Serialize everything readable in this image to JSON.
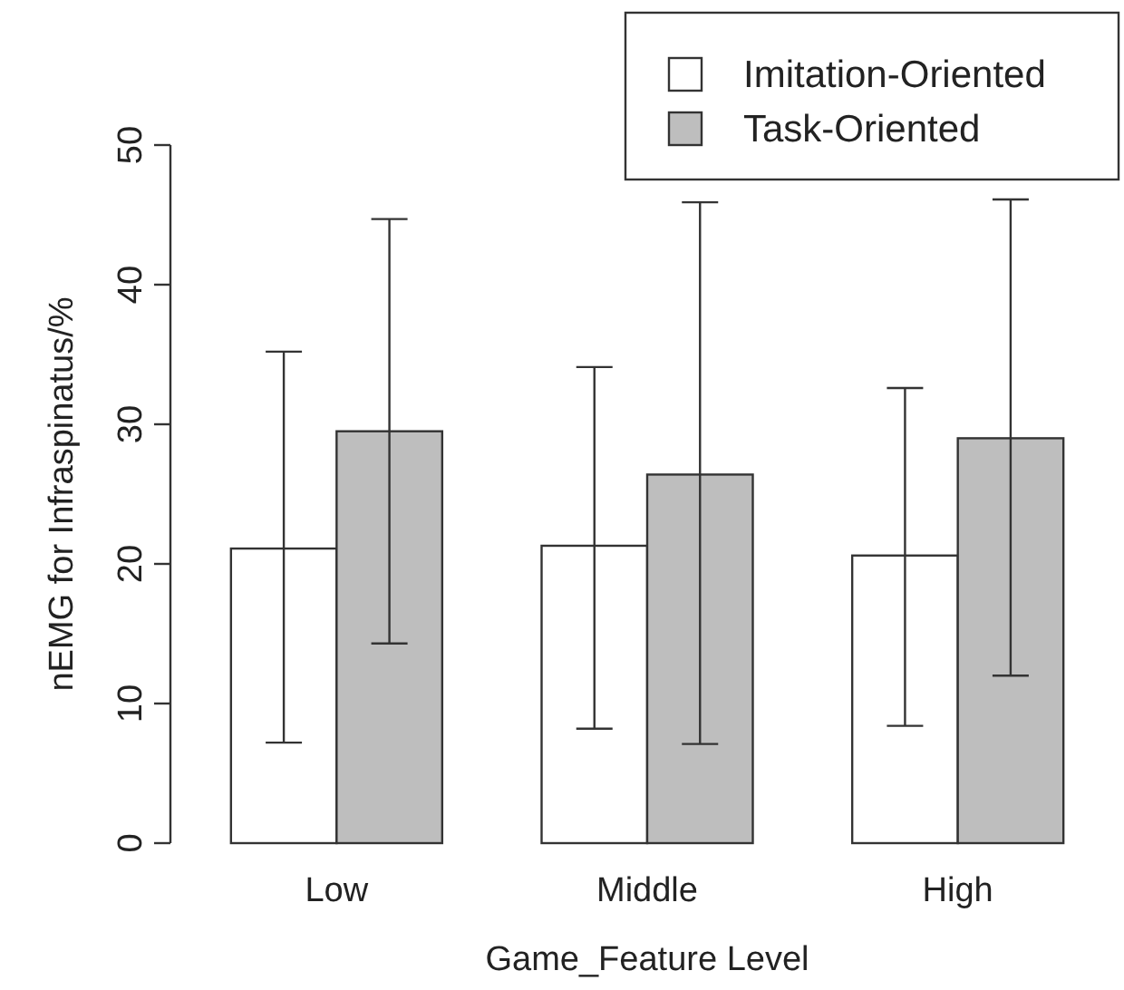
{
  "chart_data": {
    "type": "bar",
    "xlabel": "Game_Feature Level",
    "ylabel": "nEMG for Infraspinatus/%",
    "categories": [
      "Low",
      "Middle",
      "High"
    ],
    "series": [
      {
        "name": "Imitation-Oriented",
        "color": "#ffffff",
        "values": [
          21.1,
          21.3,
          20.6
        ],
        "errors": [
          [
            7.2,
            35.2
          ],
          [
            8.2,
            34.1
          ],
          [
            8.4,
            32.6
          ]
        ]
      },
      {
        "name": "Task-Oriented",
        "color": "#bebebe",
        "values": [
          29.5,
          26.4,
          29.0
        ],
        "errors": [
          [
            14.3,
            44.7
          ],
          [
            7.1,
            45.9
          ],
          [
            12.0,
            46.1
          ]
        ]
      }
    ],
    "ylim": [
      0,
      50
    ],
    "yticks": [
      0,
      10,
      20,
      30,
      40,
      50
    ],
    "legend": "top right"
  }
}
